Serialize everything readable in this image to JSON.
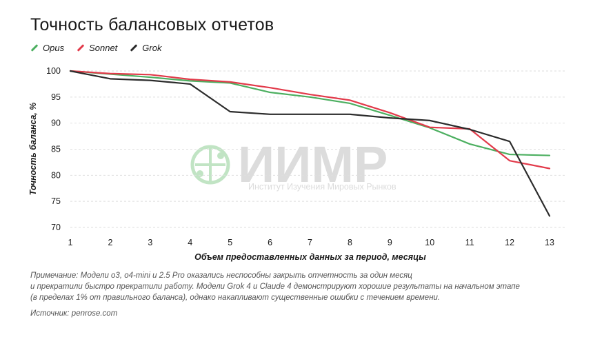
{
  "title": "Точность балансовых отчетов",
  "legend": [
    {
      "name": "Opus",
      "color": "#4caf60"
    },
    {
      "name": "Sonnet",
      "color": "#e23a4a"
    },
    {
      "name": "Grok",
      "color": "#2b2b2b"
    }
  ],
  "watermark": {
    "brand": "ИИМР",
    "subtitle": "Институт Изучения Мировых Рынков",
    "color": "#8fcf95"
  },
  "note_lines": [
    "Примечание: Модели o3, o4-mini и 2.5 Pro оказались неспособны закрыть отчетность за один месяц",
    "и прекратили быстро прекратили работу. Модели Grok 4 и Claude 4 демонстрируют хорошие результаты на начальном этапе",
    "(в пределах 1% от правильного баланса), однако накапливают существенные ошибки с течением времени."
  ],
  "source": "Источник: penrose.com",
  "chart_data": {
    "type": "line",
    "title": "Точность балансовых отчетов",
    "xlabel": "Объем предоставленных данных за период, месяцы",
    "ylabel": "Точность баланса, %",
    "x": [
      1,
      2,
      3,
      4,
      5,
      6,
      7,
      8,
      9,
      10,
      11,
      12,
      13
    ],
    "ylim": [
      70,
      100
    ],
    "yticks": [
      70,
      75,
      80,
      85,
      90,
      95,
      100
    ],
    "grid": true,
    "legend_position": "top-left",
    "series": [
      {
        "name": "Opus",
        "color": "#4caf60",
        "values": [
          100,
          99.4,
          98.8,
          98.1,
          97.7,
          95.9,
          95.0,
          93.8,
          91.5,
          89.1,
          86.0,
          84.0,
          83.8
        ]
      },
      {
        "name": "Sonnet",
        "color": "#e23a4a",
        "values": [
          100,
          99.5,
          99.3,
          98.4,
          97.9,
          96.8,
          95.5,
          94.4,
          92.0,
          89.2,
          88.9,
          82.8,
          81.3
        ]
      },
      {
        "name": "Grok",
        "color": "#2b2b2b",
        "values": [
          100,
          98.5,
          98.2,
          97.5,
          92.2,
          91.7,
          91.7,
          91.7,
          91.0,
          90.5,
          88.8,
          86.5,
          72.2
        ]
      }
    ]
  }
}
